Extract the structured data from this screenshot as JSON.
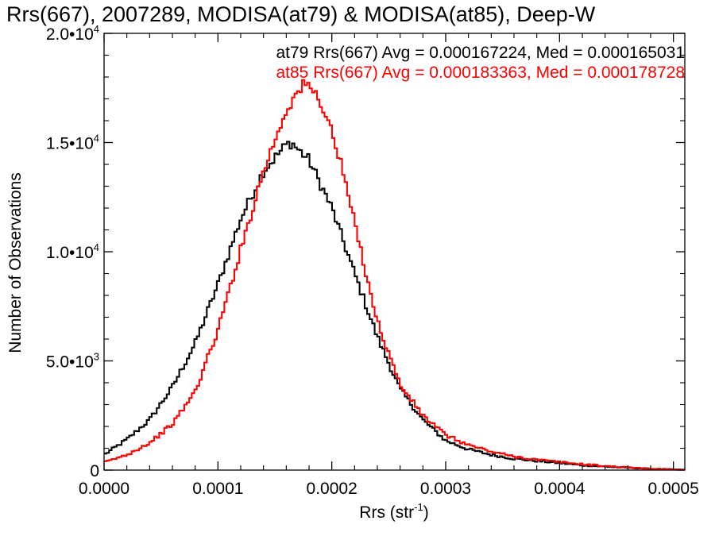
{
  "chart_data": {
    "type": "histogram-step",
    "title": "Rrs(667), 2007289, MODISA(at79) & MODISA(at85), Deep-W",
    "xlabel": "Rrs (str",
    "xlabel_sup": "-1",
    "xlabel_close": ")",
    "ylabel": "Number of Observations",
    "xlim": [
      0,
      0.00051
    ],
    "ylim": [
      0,
      20000
    ],
    "x_tick_values": [
      0,
      0.0001,
      0.0002,
      0.0003,
      0.0004,
      0.0005
    ],
    "x_tick_labels": [
      "0.0000",
      "0.0001",
      "0.0002",
      "0.0003",
      "0.0004",
      "0.0005"
    ],
    "y_ticks": [
      {
        "value": 0,
        "mantissa": "0",
        "exponent": ""
      },
      {
        "value": 5000,
        "mantissa": "5.0•10",
        "exponent": "3"
      },
      {
        "value": 10000,
        "mantissa": "1.0•10",
        "exponent": "4"
      },
      {
        "value": 15000,
        "mantissa": "1.5•10",
        "exponent": "4"
      },
      {
        "value": 20000,
        "mantissa": "2.0•10",
        "exponent": "4"
      }
    ],
    "legend": [
      {
        "text": "at79 Rrs(667) Avg = 0.000167224, Med = 0.000165031",
        "color": "#000000"
      },
      {
        "text": "at85 Rrs(667) Avg = 0.000183363, Med = 0.000178728",
        "color": "#ff0000"
      }
    ],
    "legend_position": "top-right",
    "series": [
      {
        "color": "#000000",
        "x": [
          0,
          2e-05,
          4e-05,
          6e-05,
          8e-05,
          0.0001,
          0.00012,
          0.00014,
          0.00016,
          0.000165,
          0.00017,
          0.00018,
          0.0002,
          0.00022,
          0.00024,
          0.00026,
          0.00028,
          0.0003,
          0.00032,
          0.00034,
          0.00036,
          0.00038,
          0.0004,
          0.00042,
          0.00045,
          0.00048,
          0.00051
        ],
        "y": [
          700,
          1400,
          2300,
          3800,
          5800,
          8500,
          11500,
          13700,
          14900,
          15000,
          14700,
          14200,
          12000,
          9000,
          6100,
          3700,
          2300,
          1350,
          950,
          700,
          520,
          420,
          320,
          220,
          130,
          60,
          20
        ]
      },
      {
        "color": "#ff0000",
        "x": [
          0,
          2e-05,
          4e-05,
          6e-05,
          8e-05,
          0.0001,
          0.00012,
          0.00014,
          0.00016,
          0.00017,
          0.000175,
          0.00018,
          0.00019,
          0.0002,
          0.00021,
          0.00022,
          0.00024,
          0.00026,
          0.00028,
          0.0003,
          0.00032,
          0.00034,
          0.00036,
          0.00038,
          0.0004,
          0.00042,
          0.00045,
          0.00048,
          0.00051
        ],
        "y": [
          350,
          700,
          1250,
          2100,
          3600,
          6400,
          10100,
          13700,
          16500,
          17300,
          17600,
          17600,
          16900,
          15500,
          13600,
          11300,
          6800,
          3900,
          2500,
          1600,
          1150,
          850,
          620,
          480,
          370,
          270,
          150,
          60,
          20
        ]
      }
    ]
  }
}
